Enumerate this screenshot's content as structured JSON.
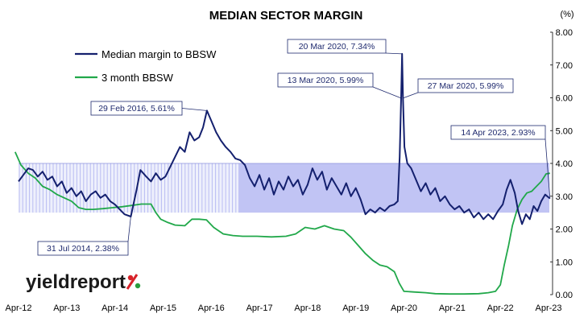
{
  "chart_data": {
    "type": "line",
    "title": "MEDIAN SECTOR MARGIN",
    "yunit": "(%)",
    "ylim": [
      0,
      8
    ],
    "yticks": [
      "0.00",
      "1.00",
      "2.00",
      "3.00",
      "4.00",
      "5.00",
      "6.00",
      "7.00",
      "8.00"
    ],
    "xticks": [
      "Apr-12",
      "Apr-13",
      "Apr-14",
      "Apr-15",
      "Apr-16",
      "Apr-17",
      "Apr-18",
      "Apr-19",
      "Apr-20",
      "Apr-21",
      "Apr-22",
      "Apr-23"
    ],
    "grid": false,
    "legend_position": "top-left",
    "band": {
      "from": 2.5,
      "to": 4.0,
      "color": "#b9bcf2"
    },
    "series": [
      {
        "name": "Median margin to BBSW",
        "color": "#14206e",
        "points": [
          [
            2012.25,
            3.45
          ],
          [
            2012.35,
            3.65
          ],
          [
            2012.45,
            3.85
          ],
          [
            2012.55,
            3.8
          ],
          [
            2012.65,
            3.6
          ],
          [
            2012.75,
            3.75
          ],
          [
            2012.85,
            3.5
          ],
          [
            2012.95,
            3.6
          ],
          [
            2013.05,
            3.3
          ],
          [
            2013.15,
            3.45
          ],
          [
            2013.25,
            3.1
          ],
          [
            2013.35,
            3.25
          ],
          [
            2013.45,
            3.0
          ],
          [
            2013.55,
            3.15
          ],
          [
            2013.65,
            2.85
          ],
          [
            2013.75,
            3.05
          ],
          [
            2013.85,
            3.15
          ],
          [
            2013.95,
            2.95
          ],
          [
            2014.05,
            3.05
          ],
          [
            2014.15,
            2.85
          ],
          [
            2014.25,
            2.75
          ],
          [
            2014.35,
            2.6
          ],
          [
            2014.45,
            2.45
          ],
          [
            2014.58,
            2.38
          ],
          [
            2014.7,
            3.2
          ],
          [
            2014.78,
            3.8
          ],
          [
            2014.9,
            3.6
          ],
          [
            2015.0,
            3.45
          ],
          [
            2015.1,
            3.7
          ],
          [
            2015.2,
            3.5
          ],
          [
            2015.3,
            3.6
          ],
          [
            2015.4,
            3.9
          ],
          [
            2015.5,
            4.2
          ],
          [
            2015.6,
            4.5
          ],
          [
            2015.7,
            4.35
          ],
          [
            2015.8,
            4.95
          ],
          [
            2015.9,
            4.7
          ],
          [
            2016.0,
            4.8
          ],
          [
            2016.08,
            5.1
          ],
          [
            2016.16,
            5.61
          ],
          [
            2016.25,
            5.3
          ],
          [
            2016.35,
            4.95
          ],
          [
            2016.45,
            4.7
          ],
          [
            2016.55,
            4.5
          ],
          [
            2016.65,
            4.35
          ],
          [
            2016.75,
            4.15
          ],
          [
            2016.85,
            4.1
          ],
          [
            2016.95,
            3.95
          ],
          [
            2017.05,
            3.55
          ],
          [
            2017.15,
            3.3
          ],
          [
            2017.25,
            3.65
          ],
          [
            2017.35,
            3.2
          ],
          [
            2017.45,
            3.55
          ],
          [
            2017.55,
            3.05
          ],
          [
            2017.65,
            3.45
          ],
          [
            2017.75,
            3.2
          ],
          [
            2017.85,
            3.6
          ],
          [
            2017.95,
            3.3
          ],
          [
            2018.05,
            3.5
          ],
          [
            2018.15,
            3.05
          ],
          [
            2018.25,
            3.35
          ],
          [
            2018.35,
            3.85
          ],
          [
            2018.45,
            3.5
          ],
          [
            2018.55,
            3.75
          ],
          [
            2018.65,
            3.2
          ],
          [
            2018.75,
            3.55
          ],
          [
            2018.85,
            3.3
          ],
          [
            2018.95,
            3.05
          ],
          [
            2019.05,
            3.4
          ],
          [
            2019.15,
            3.0
          ],
          [
            2019.25,
            3.25
          ],
          [
            2019.35,
            2.9
          ],
          [
            2019.45,
            2.45
          ],
          [
            2019.55,
            2.6
          ],
          [
            2019.65,
            2.5
          ],
          [
            2019.75,
            2.65
          ],
          [
            2019.85,
            2.55
          ],
          [
            2019.95,
            2.7
          ],
          [
            2020.05,
            2.75
          ],
          [
            2020.12,
            2.85
          ],
          [
            2020.16,
            4.2
          ],
          [
            2020.19,
            5.99
          ],
          [
            2020.21,
            7.34
          ],
          [
            2020.23,
            5.99
          ],
          [
            2020.26,
            4.5
          ],
          [
            2020.32,
            4.0
          ],
          [
            2020.4,
            3.85
          ],
          [
            2020.5,
            3.5
          ],
          [
            2020.6,
            3.15
          ],
          [
            2020.7,
            3.4
          ],
          [
            2020.8,
            3.05
          ],
          [
            2020.9,
            3.25
          ],
          [
            2021.0,
            2.85
          ],
          [
            2021.1,
            3.0
          ],
          [
            2021.2,
            2.75
          ],
          [
            2021.3,
            2.6
          ],
          [
            2021.4,
            2.7
          ],
          [
            2021.5,
            2.5
          ],
          [
            2021.6,
            2.6
          ],
          [
            2021.7,
            2.35
          ],
          [
            2021.8,
            2.5
          ],
          [
            2021.9,
            2.3
          ],
          [
            2022.0,
            2.45
          ],
          [
            2022.1,
            2.3
          ],
          [
            2022.2,
            2.55
          ],
          [
            2022.3,
            2.75
          ],
          [
            2022.38,
            3.2
          ],
          [
            2022.46,
            3.5
          ],
          [
            2022.55,
            3.1
          ],
          [
            2022.62,
            2.55
          ],
          [
            2022.7,
            2.15
          ],
          [
            2022.78,
            2.45
          ],
          [
            2022.86,
            2.3
          ],
          [
            2022.94,
            2.7
          ],
          [
            2023.02,
            2.55
          ],
          [
            2023.1,
            2.85
          ],
          [
            2023.18,
            3.05
          ],
          [
            2023.28,
            2.93
          ]
        ]
      },
      {
        "name": "3 month BBSW",
        "color": "#21a84a",
        "points": [
          [
            2012.18,
            4.35
          ],
          [
            2012.3,
            3.95
          ],
          [
            2012.45,
            3.7
          ],
          [
            2012.6,
            3.55
          ],
          [
            2012.75,
            3.3
          ],
          [
            2012.9,
            3.2
          ],
          [
            2013.05,
            3.05
          ],
          [
            2013.2,
            2.95
          ],
          [
            2013.35,
            2.85
          ],
          [
            2013.5,
            2.65
          ],
          [
            2013.65,
            2.6
          ],
          [
            2013.8,
            2.6
          ],
          [
            2014.0,
            2.62
          ],
          [
            2014.2,
            2.65
          ],
          [
            2014.4,
            2.68
          ],
          [
            2014.6,
            2.72
          ],
          [
            2014.8,
            2.76
          ],
          [
            2015.0,
            2.76
          ],
          [
            2015.1,
            2.5
          ],
          [
            2015.2,
            2.3
          ],
          [
            2015.35,
            2.2
          ],
          [
            2015.5,
            2.12
          ],
          [
            2015.7,
            2.1
          ],
          [
            2015.85,
            2.3
          ],
          [
            2016.0,
            2.3
          ],
          [
            2016.15,
            2.28
          ],
          [
            2016.3,
            2.05
          ],
          [
            2016.5,
            1.85
          ],
          [
            2016.7,
            1.8
          ],
          [
            2016.9,
            1.78
          ],
          [
            2017.2,
            1.78
          ],
          [
            2017.5,
            1.76
          ],
          [
            2017.8,
            1.78
          ],
          [
            2018.0,
            1.85
          ],
          [
            2018.2,
            2.05
          ],
          [
            2018.4,
            2.0
          ],
          [
            2018.6,
            2.1
          ],
          [
            2018.8,
            2.0
          ],
          [
            2019.0,
            1.95
          ],
          [
            2019.15,
            1.75
          ],
          [
            2019.3,
            1.5
          ],
          [
            2019.45,
            1.25
          ],
          [
            2019.6,
            1.05
          ],
          [
            2019.75,
            0.9
          ],
          [
            2019.9,
            0.85
          ],
          [
            2020.05,
            0.7
          ],
          [
            2020.15,
            0.35
          ],
          [
            2020.25,
            0.1
          ],
          [
            2020.45,
            0.08
          ],
          [
            2020.7,
            0.06
          ],
          [
            2020.9,
            0.03
          ],
          [
            2021.2,
            0.02
          ],
          [
            2021.5,
            0.02
          ],
          [
            2021.8,
            0.03
          ],
          [
            2022.0,
            0.06
          ],
          [
            2022.15,
            0.1
          ],
          [
            2022.25,
            0.3
          ],
          [
            2022.33,
            0.9
          ],
          [
            2022.42,
            1.5
          ],
          [
            2022.5,
            2.1
          ],
          [
            2022.6,
            2.6
          ],
          [
            2022.7,
            2.9
          ],
          [
            2022.8,
            3.1
          ],
          [
            2022.9,
            3.15
          ],
          [
            2023.0,
            3.3
          ],
          [
            2023.1,
            3.45
          ],
          [
            2023.2,
            3.68
          ],
          [
            2023.28,
            3.7
          ]
        ]
      }
    ],
    "annotations": [
      {
        "text": "20 Mar 2020,  7.34%",
        "x": 2020.21,
        "y": 7.34
      },
      {
        "text": "13 Mar 2020,  5.99%",
        "x": 2020.19,
        "y": 5.99
      },
      {
        "text": "27 Mar 2020,  5.99%",
        "x": 2020.23,
        "y": 5.99
      },
      {
        "text": "29 Feb 2016,  5.61%",
        "x": 2016.16,
        "y": 5.61
      },
      {
        "text": "14 Apr 2023,  2.93%",
        "x": 2023.28,
        "y": 2.93
      },
      {
        "text": "31 Jul 2014,  2.38%",
        "x": 2014.58,
        "y": 2.38
      }
    ]
  },
  "logo": {
    "text": "yieldreport",
    "symbol": "%"
  },
  "colors": {
    "axis": "#000000",
    "annotation": "#1f2a6e",
    "logo_red": "#d8232a",
    "logo_green": "#2a9d3f"
  }
}
